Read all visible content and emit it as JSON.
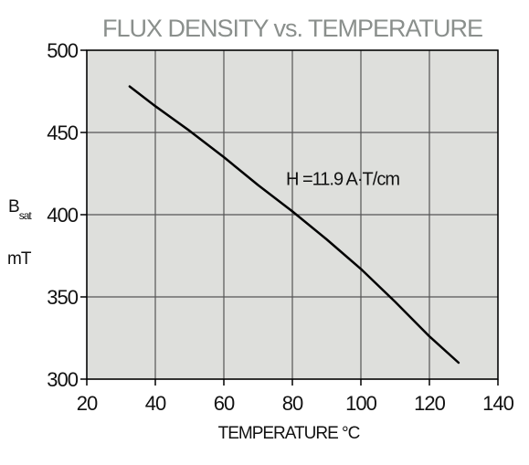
{
  "chart_data": {
    "type": "line",
    "title": "FLUX DENSITY vs. TEMPERATURE",
    "xlabel": "TEMPERATURE °C",
    "ylabel": {
      "symbol": "B",
      "subscript": "sat",
      "unit": "mT"
    },
    "xlim": [
      20,
      140
    ],
    "ylim": [
      300,
      500
    ],
    "x_ticks": [
      20,
      40,
      60,
      80,
      100,
      120,
      140
    ],
    "y_ticks": [
      300,
      350,
      400,
      450,
      500
    ],
    "grid": true,
    "background_color": "#dedfdc",
    "line_color": "#000000",
    "title_color": "#8a8f8c",
    "annotation": {
      "text": "H =11.9 A·T/cm",
      "x": 80,
      "y": 422
    },
    "series": [
      {
        "x": [
          32.5,
          40,
          50,
          60,
          70,
          80,
          90,
          100,
          110,
          120,
          128.5
        ],
        "y": [
          478,
          466,
          451,
          435,
          418,
          402,
          385,
          367,
          347,
          326,
          310
        ]
      }
    ]
  }
}
